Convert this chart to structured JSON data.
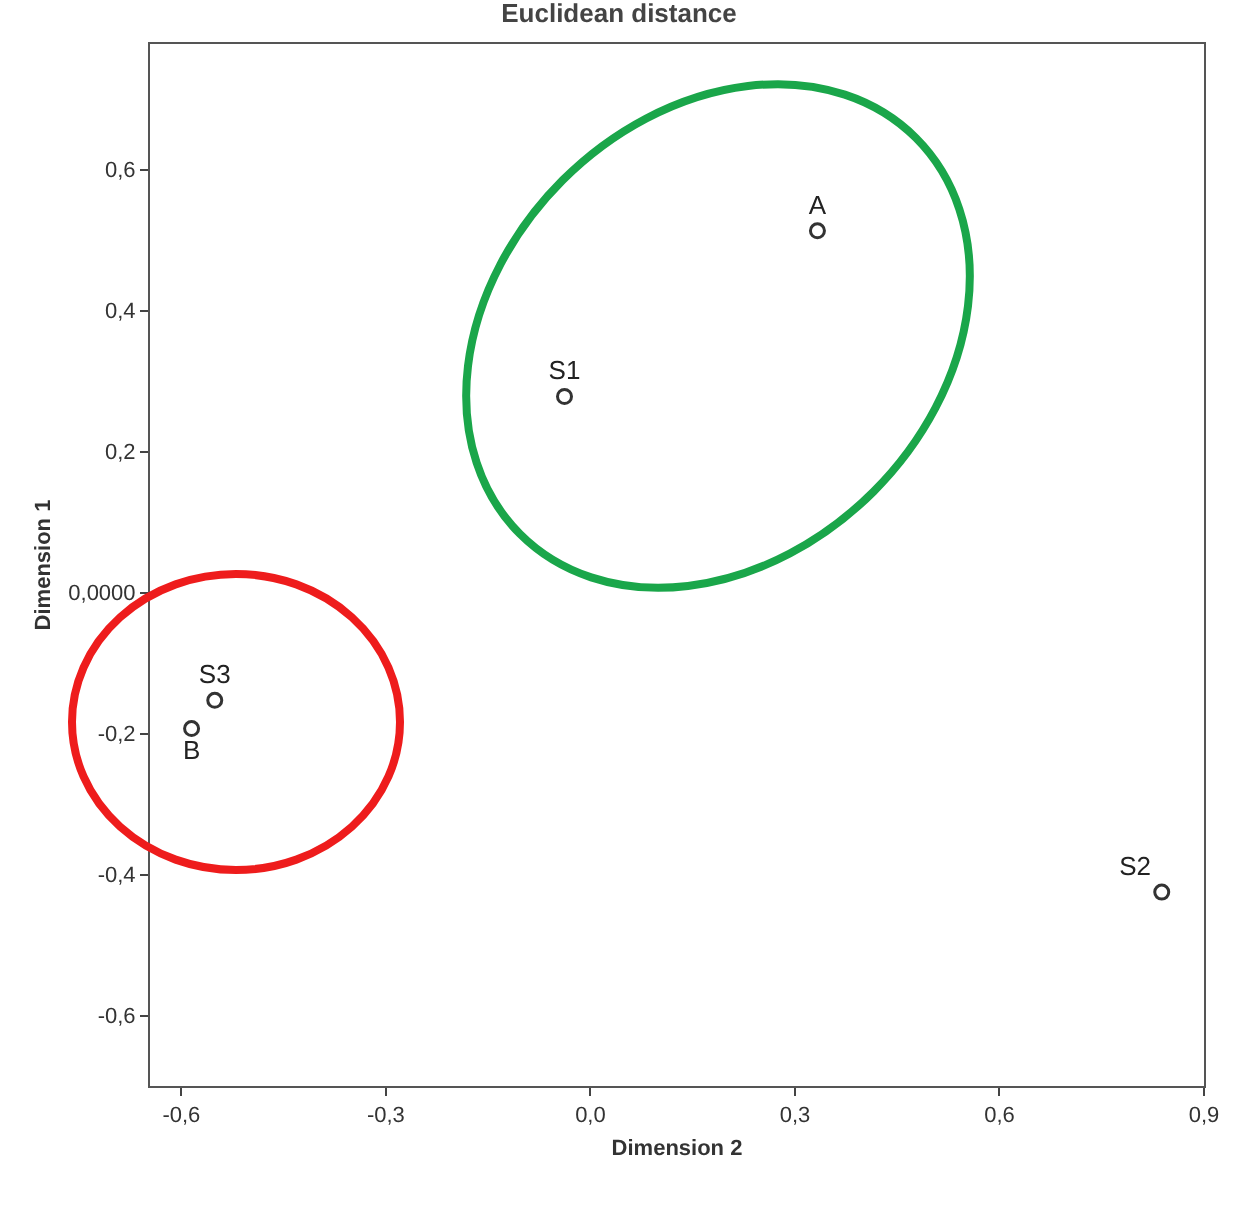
{
  "chart_data": {
    "type": "scatter",
    "title": "Euclidean distance",
    "xlabel": "Dimension 2",
    "ylabel": "Dimension 1",
    "x": [
      0.333,
      -0.038,
      -0.551,
      -0.585,
      0.838
    ],
    "values": [
      0.513,
      0.278,
      -0.153,
      -0.193,
      -0.425
    ],
    "value_labels": [
      "A",
      "S1",
      "S3",
      "B",
      "S2"
    ],
    "color": "#333333",
    "marker": "circle",
    "xlim": [
      -0.646,
      0.9
    ],
    "ylim": [
      -0.7,
      0.778
    ],
    "xticks": [
      {
        "value": -0.6,
        "label": "-0,6"
      },
      {
        "value": -0.3,
        "label": "-0,3"
      },
      {
        "value": 0.0,
        "label": "0,0"
      },
      {
        "value": 0.3,
        "label": "0,3"
      },
      {
        "value": 0.6,
        "label": "0,6"
      },
      {
        "value": 0.9,
        "label": "0,9"
      }
    ],
    "yticks": [
      {
        "value": -0.6,
        "label": "-0,6"
      },
      {
        "value": -0.4,
        "label": "-0,4"
      },
      {
        "value": -0.2,
        "label": "-0,2"
      },
      {
        "value": 0.0,
        "label": "0,0000"
      },
      {
        "value": 0.2,
        "label": "0,2"
      },
      {
        "value": 0.4,
        "label": "0,4"
      },
      {
        "value": 0.6,
        "label": "0,6"
      }
    ]
  }
}
